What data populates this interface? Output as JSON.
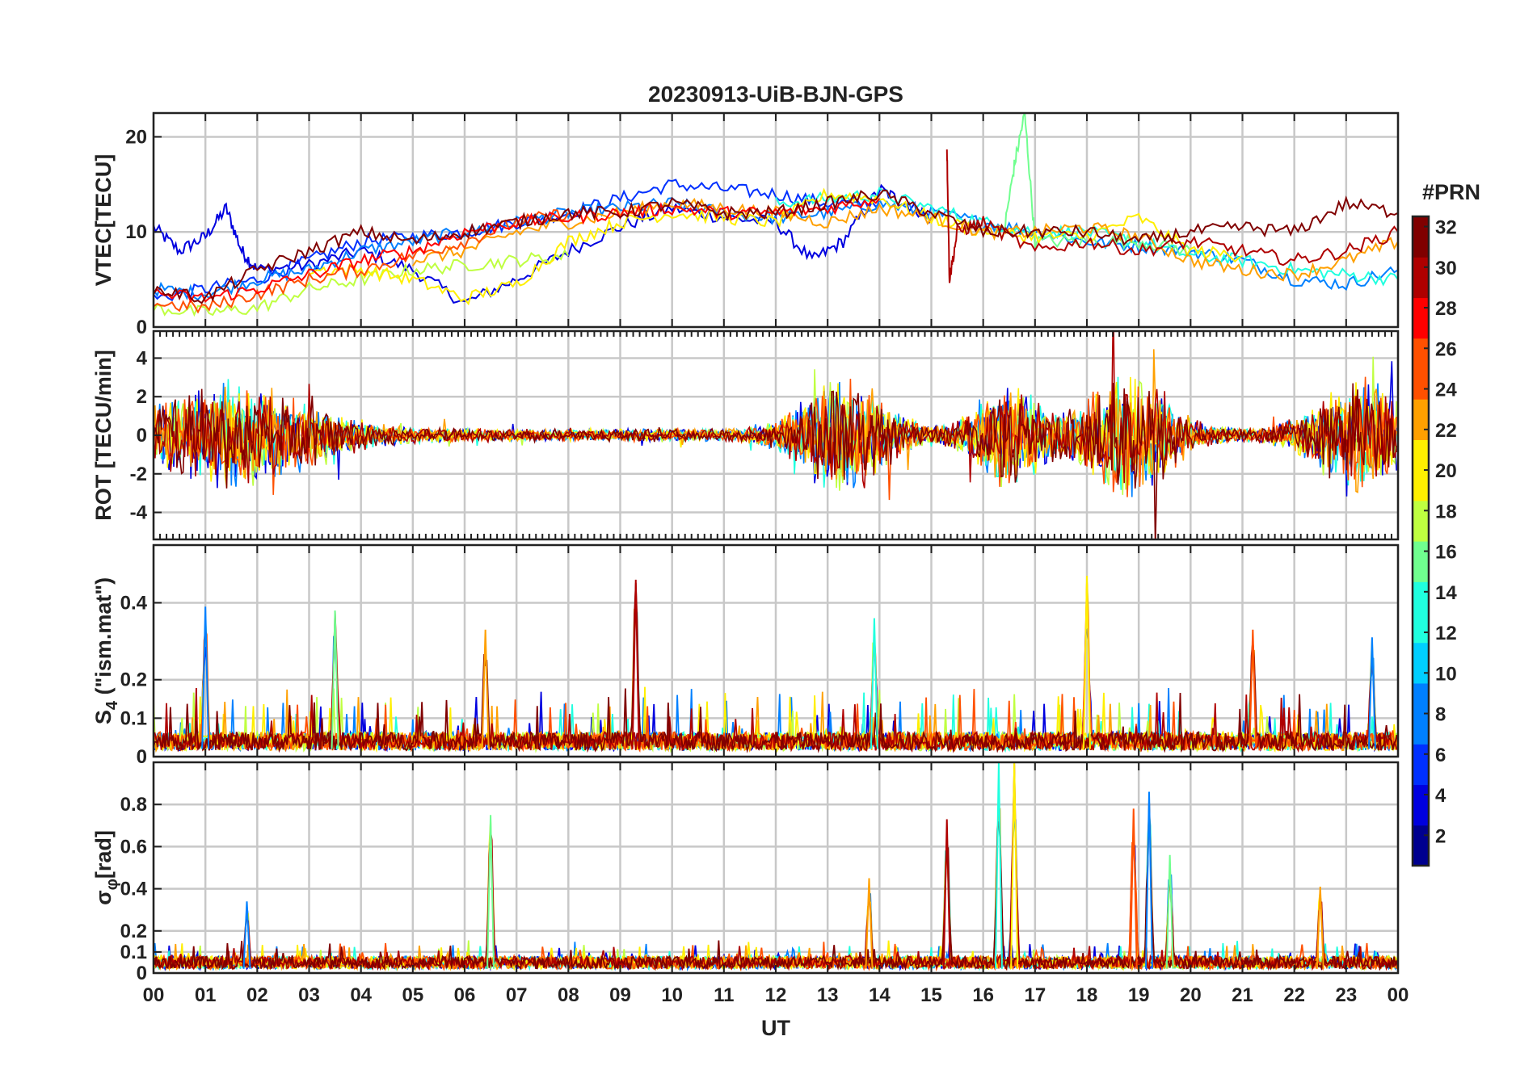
{
  "title": "20230913-UiB-BJN-GPS",
  "chart_data": [
    {
      "type": "line",
      "panel": "vtec",
      "ylabel": "VTEC[TECU]",
      "ylim": [
        0,
        22.5
      ],
      "yticks": [
        0,
        10,
        20
      ],
      "xlim": [
        0,
        24
      ],
      "series": [
        {
          "prn": 3,
          "x": [
            0,
            0.5,
            1,
            1.4,
            1.7,
            2,
            3,
            4,
            5,
            6,
            7,
            8,
            9,
            10,
            11,
            12,
            12.7,
            13.3,
            14,
            14.5,
            15
          ],
          "values": [
            10.5,
            8,
            9.5,
            12.5,
            8,
            6,
            6.5,
            8,
            6,
            2.5,
            5,
            8,
            10.5,
            12.5,
            11.5,
            11,
            7,
            9,
            14.5,
            13,
            11.5
          ]
        },
        {
          "prn": 5,
          "x": [
            0,
            1,
            2,
            3,
            4,
            5,
            6,
            7,
            8,
            9,
            10,
            11,
            12,
            13,
            14
          ],
          "values": [
            3,
            4,
            5,
            7,
            9,
            9.5,
            10,
            11,
            12,
            13.5,
            15,
            14.5,
            14,
            13,
            13
          ]
        },
        {
          "prn": 9,
          "x": [
            0,
            1,
            2,
            3,
            4,
            5,
            6,
            7,
            8,
            9,
            10,
            11,
            12,
            13,
            14,
            15,
            16,
            17,
            18,
            19,
            20,
            21,
            22,
            23,
            24
          ],
          "values": [
            4,
            3.5,
            5,
            6,
            8,
            9,
            10,
            11,
            12,
            12.5,
            13,
            12,
            11.5,
            12,
            13,
            12,
            11,
            10,
            9,
            8.5,
            8,
            7,
            5,
            4.5,
            6
          ]
        },
        {
          "prn": 12,
          "x": [
            12,
            13,
            14,
            15,
            16,
            17,
            18,
            19,
            20,
            21,
            22,
            23,
            24
          ],
          "values": [
            13,
            13.5,
            14,
            12.5,
            11,
            10,
            10,
            9,
            7.5,
            7,
            6,
            5.5,
            5
          ]
        },
        {
          "prn": 16,
          "x": [
            16.4,
            16.6,
            16.8,
            17,
            18,
            19,
            20
          ],
          "values": [
            10,
            17,
            22.5,
            9,
            9,
            9,
            8
          ]
        },
        {
          "prn": 17,
          "x": [
            0,
            1,
            2,
            3,
            4,
            5,
            6,
            7,
            8
          ],
          "values": [
            2,
            1.5,
            2,
            4,
            5,
            6,
            6.5,
            7,
            7.5
          ]
        },
        {
          "prn": 20,
          "x": [
            3,
            4,
            5,
            6,
            7,
            8,
            9,
            10,
            11,
            12,
            13,
            14,
            15,
            16,
            17,
            18,
            19,
            20,
            21
          ],
          "values": [
            6,
            6,
            5,
            3,
            4.5,
            9,
            11,
            12,
            11.5,
            11,
            14,
            13.5,
            11.5,
            10,
            9.5,
            9.5,
            11.5,
            8,
            7.5
          ]
        },
        {
          "prn": 23,
          "x": [
            5,
            6,
            7,
            8,
            9,
            10,
            11,
            12,
            13,
            14,
            15,
            16,
            17,
            18,
            19,
            20,
            21,
            22,
            23,
            24
          ],
          "values": [
            7,
            8,
            10,
            11,
            12,
            13,
            12.5,
            12,
            11,
            12.5,
            11.5,
            10,
            10,
            10.5,
            9.5,
            7,
            6,
            5.5,
            7,
            9
          ]
        },
        {
          "prn": 25,
          "x": [
            0,
            1,
            2,
            3,
            4,
            5,
            6,
            7,
            8
          ],
          "values": [
            2.5,
            2,
            3.5,
            5,
            6,
            7.5,
            9,
            11,
            12
          ]
        },
        {
          "prn": 28,
          "x": [
            0,
            1,
            2,
            3,
            4,
            5,
            6,
            7,
            8,
            9,
            10,
            11,
            12,
            13,
            14
          ],
          "values": [
            3.5,
            3,
            4,
            5.5,
            7,
            8,
            10,
            11,
            11.5,
            12,
            12.5,
            12,
            12,
            12.5,
            13.5
          ]
        },
        {
          "prn": 30,
          "x": [
            15.3,
            15.35,
            15.5,
            16,
            17,
            18,
            19,
            20,
            21,
            22,
            23,
            24
          ],
          "values": [
            19,
            5,
            10,
            11,
            8,
            9,
            8,
            9,
            8,
            7,
            8,
            10
          ]
        },
        {
          "prn": 31,
          "x": [
            0,
            1,
            2,
            3,
            4,
            5,
            6,
            7,
            8,
            9,
            10,
            11,
            12,
            13,
            14,
            15,
            16,
            17,
            18,
            19,
            20,
            21,
            22,
            23,
            24
          ],
          "values": [
            4,
            3,
            6,
            8,
            10,
            9,
            10,
            11,
            12,
            12,
            13,
            12,
            12,
            13,
            14,
            12,
            10,
            10,
            10,
            9,
            10,
            10.5,
            10,
            13,
            12
          ]
        }
      ]
    },
    {
      "type": "line",
      "panel": "rot",
      "ylabel": "ROT [TECU/min]",
      "ylim": [
        -5.4,
        5.4
      ],
      "yticks": [
        -4,
        -2,
        0,
        2,
        4
      ],
      "xlim": [
        0,
        24
      ],
      "note": "noisy series fluctuating around 0; amplitude peaks near 01-02, 13-14.5, 16-17, 18-19.5 and 22.5-24 UT"
    },
    {
      "type": "line",
      "panel": "s4",
      "ylabel": "S4 (\"ism.mat\")",
      "ylabel_main": "S",
      "ylabel_sub": "4",
      "ylabel_rest": " (\"ism.mat\")",
      "ylim": [
        0,
        0.55
      ],
      "yticks": [
        0,
        0.1,
        0.2,
        0.4
      ],
      "xlim": [
        0,
        24
      ],
      "peaks": [
        {
          "x": 1.0,
          "y": 0.39
        },
        {
          "x": 3.5,
          "y": 0.38
        },
        {
          "x": 6.4,
          "y": 0.33
        },
        {
          "x": 9.3,
          "y": 0.46
        },
        {
          "x": 13.9,
          "y": 0.36
        },
        {
          "x": 18.0,
          "y": 0.47
        },
        {
          "x": 21.2,
          "y": 0.33
        },
        {
          "x": 23.5,
          "y": 0.31
        }
      ]
    },
    {
      "type": "line",
      "panel": "sigma",
      "ylabel": "σφ[rad]",
      "ylabel_main": "σ",
      "ylabel_sub": "φ",
      "ylabel_rest": "[rad]",
      "ylim": [
        0,
        1.0
      ],
      "yticks": [
        0,
        0.1,
        0.2,
        0.4,
        0.6,
        0.8
      ],
      "xlim": [
        0,
        24
      ],
      "peaks": [
        {
          "x": 1.8,
          "y": 0.34
        },
        {
          "x": 6.5,
          "y": 0.75
        },
        {
          "x": 13.8,
          "y": 0.45
        },
        {
          "x": 15.3,
          "y": 0.73
        },
        {
          "x": 16.3,
          "y": 1.0
        },
        {
          "x": 16.6,
          "y": 1.0
        },
        {
          "x": 18.9,
          "y": 0.78
        },
        {
          "x": 19.2,
          "y": 0.86
        },
        {
          "x": 19.6,
          "y": 0.56
        },
        {
          "x": 22.5,
          "y": 0.41
        }
      ]
    }
  ],
  "xaxis": {
    "label": "UT",
    "ticks": [
      "00",
      "01",
      "02",
      "03",
      "04",
      "05",
      "06",
      "07",
      "08",
      "09",
      "10",
      "11",
      "12",
      "13",
      "14",
      "15",
      "16",
      "17",
      "18",
      "19",
      "20",
      "21",
      "22",
      "23",
      "00"
    ]
  },
  "colorbar": {
    "label": "#PRN",
    "range": [
      1,
      32
    ],
    "ticks": [
      "2",
      "4",
      "6",
      "8",
      "10",
      "12",
      "14",
      "16",
      "18",
      "20",
      "22",
      "24",
      "26",
      "28",
      "30",
      "32"
    ],
    "colors": [
      "#00008f",
      "#0000df",
      "#0030ff",
      "#0080ff",
      "#00cfff",
      "#20ffdf",
      "#70ff8f",
      "#bfff40",
      "#ffef00",
      "#ffa000",
      "#ff5000",
      "#ff0000",
      "#af0000",
      "#800000"
    ]
  }
}
